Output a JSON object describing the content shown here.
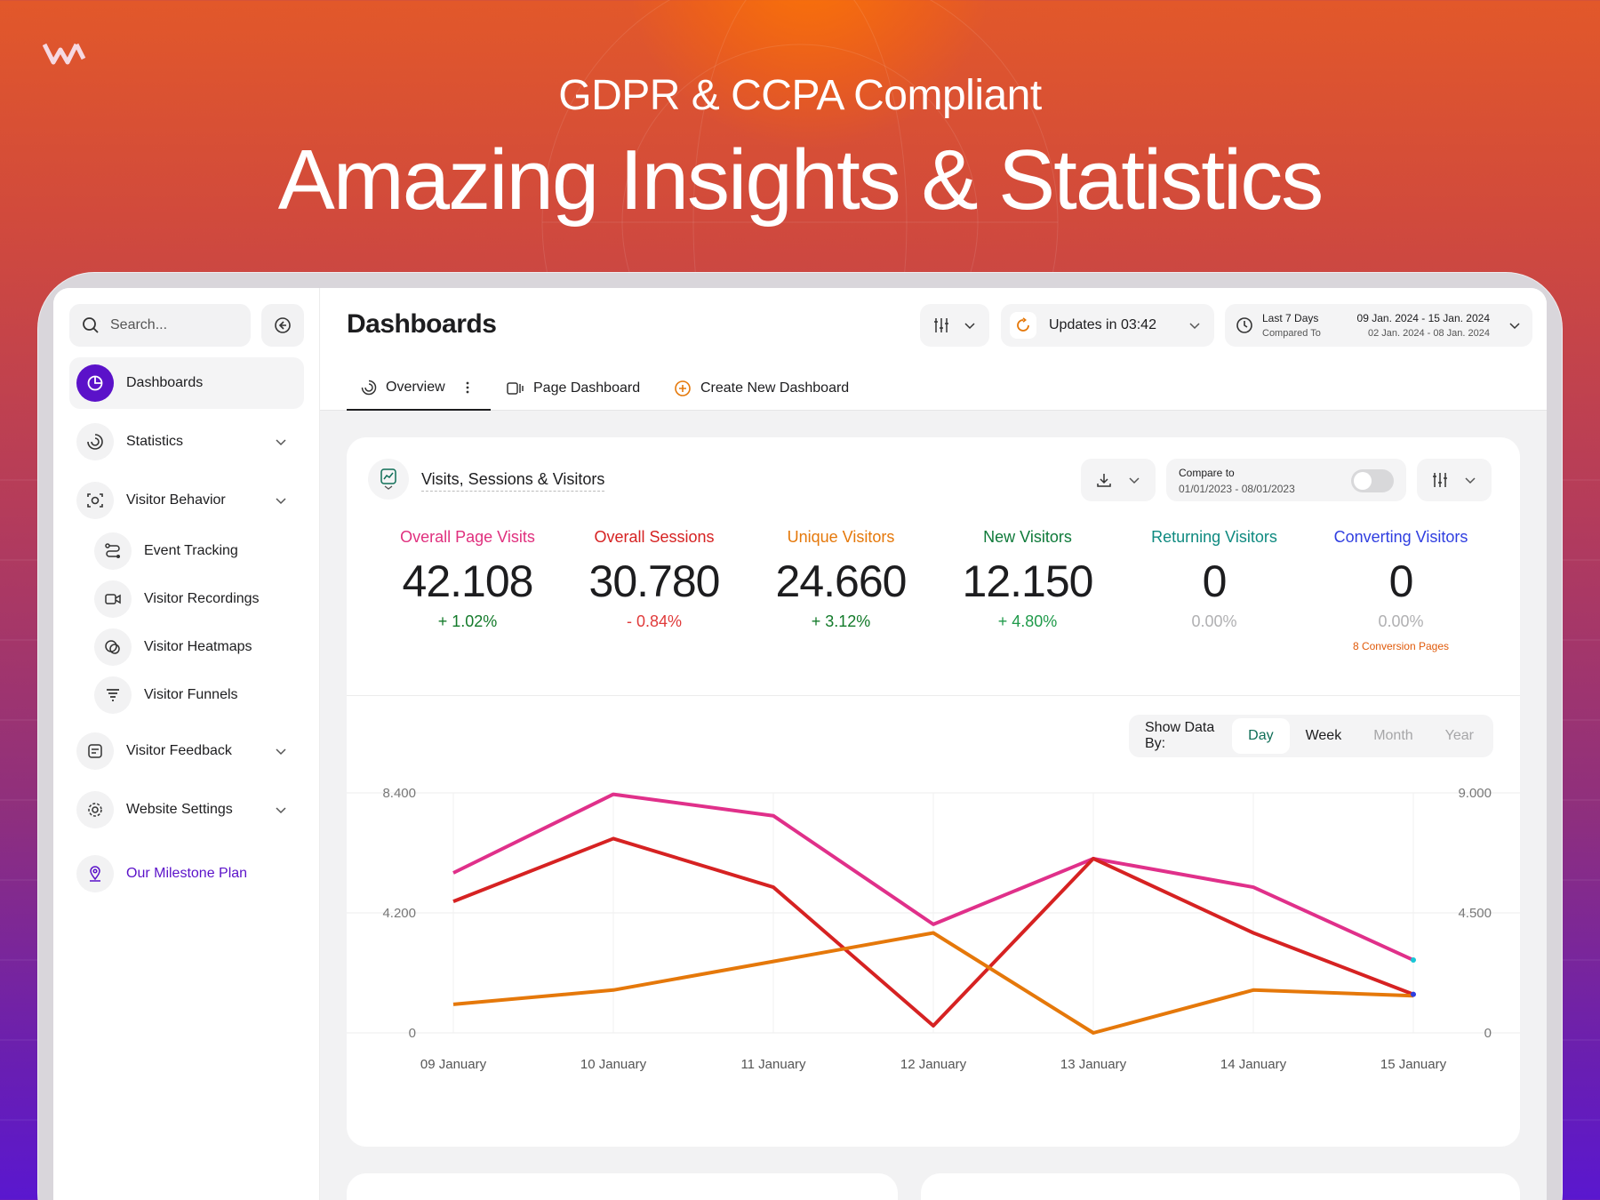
{
  "hero": {
    "subtitle": "GDPR & CCPA Compliant",
    "title": "Amazing Insights & Statistics"
  },
  "sidebar": {
    "search_placeholder": "Search...",
    "items": [
      {
        "label": "Dashboards",
        "icon": "pie-chart-icon",
        "active": true
      },
      {
        "label": "Statistics",
        "icon": "stats-icon"
      },
      {
        "label": "Visitor Behavior",
        "icon": "eye-scan-icon"
      },
      {
        "label": "Event Tracking",
        "icon": "route-icon"
      },
      {
        "label": "Visitor Recordings",
        "icon": "video-icon"
      },
      {
        "label": "Visitor Heatmaps",
        "icon": "heatmap-icon"
      },
      {
        "label": "Visitor Funnels",
        "icon": "funnel-icon"
      },
      {
        "label": "Visitor Feedback",
        "icon": "feedback-icon"
      },
      {
        "label": "Website Settings",
        "icon": "gear-icon"
      },
      {
        "label": "Our Milestone Plan",
        "icon": "map-pin-icon"
      }
    ]
  },
  "header": {
    "title": "Dashboards",
    "updates_label": "Updates in 03:42",
    "date_range": {
      "preset": "Last 7 Days",
      "compared_label": "Compared To",
      "current": "09 Jan. 2024 - 15 Jan. 2024",
      "previous": "02 Jan. 2024 - 08 Jan. 2024"
    },
    "tabs": [
      {
        "label": "Overview",
        "active": true
      },
      {
        "label": "Page Dashboard"
      },
      {
        "label": "Create New Dashboard"
      }
    ]
  },
  "card": {
    "title": "Visits, Sessions & Visitors",
    "compare_label": "Compare to",
    "compare_range": "01/01/2023 - 08/01/2023",
    "metrics": [
      {
        "label": "Overall Page Visits",
        "value": "42.108",
        "change": "+ 1.02%",
        "label_color": "#e0307e",
        "change_color": "#137a2a"
      },
      {
        "label": "Overall Sessions",
        "value": "30.780",
        "change": "- 0.84%",
        "label_color": "#d62222",
        "change_color": "#e03a3a"
      },
      {
        "label": "Unique Visitors",
        "value": "24.660",
        "change": "+ 3.12%",
        "label_color": "#e5780a",
        "change_color": "#137a2a"
      },
      {
        "label": "New Visitors",
        "value": "12.150",
        "change": "+ 4.80%",
        "label_color": "#0f7a3a",
        "change_color": "#1f9a4a"
      },
      {
        "label": "Returning Visitors",
        "value": "0",
        "change": "0.00%",
        "label_color": "#0f8a80",
        "change_color": "#b0b0b2"
      },
      {
        "label": "Converting Visitors",
        "value": "0",
        "change": "0.00%",
        "label_color": "#2f3ee0",
        "change_color": "#b0b0b2",
        "note": "8 Conversion Pages"
      }
    ],
    "show_by": {
      "label": "Show Data By:",
      "options": [
        "Day",
        "Week",
        "Month",
        "Year"
      ],
      "selected": "Day"
    }
  },
  "chart_data": {
    "type": "line",
    "categories": [
      "09 January",
      "10 January",
      "11 January",
      "12 January",
      "13 January",
      "14 January",
      "15 January"
    ],
    "y_left": {
      "ticks": [
        "8.400",
        "4.200",
        "0"
      ],
      "ylim": [
        0,
        8400
      ]
    },
    "y_right": {
      "ticks": [
        "9.000",
        "4.500",
        "0"
      ],
      "ylim": [
        0,
        9000
      ]
    },
    "grid": true,
    "series": [
      {
        "color": "#e0308a",
        "values": [
          5600,
          8350,
          7600,
          3800,
          6100,
          5100,
          2550
        ]
      },
      {
        "color": "#d62222",
        "values": [
          4600,
          6800,
          5100,
          250,
          6100,
          3500,
          1350
        ]
      },
      {
        "color": "#e5780a",
        "values": [
          1000,
          1500,
          2500,
          3500,
          0,
          1500,
          1300
        ]
      }
    ]
  }
}
